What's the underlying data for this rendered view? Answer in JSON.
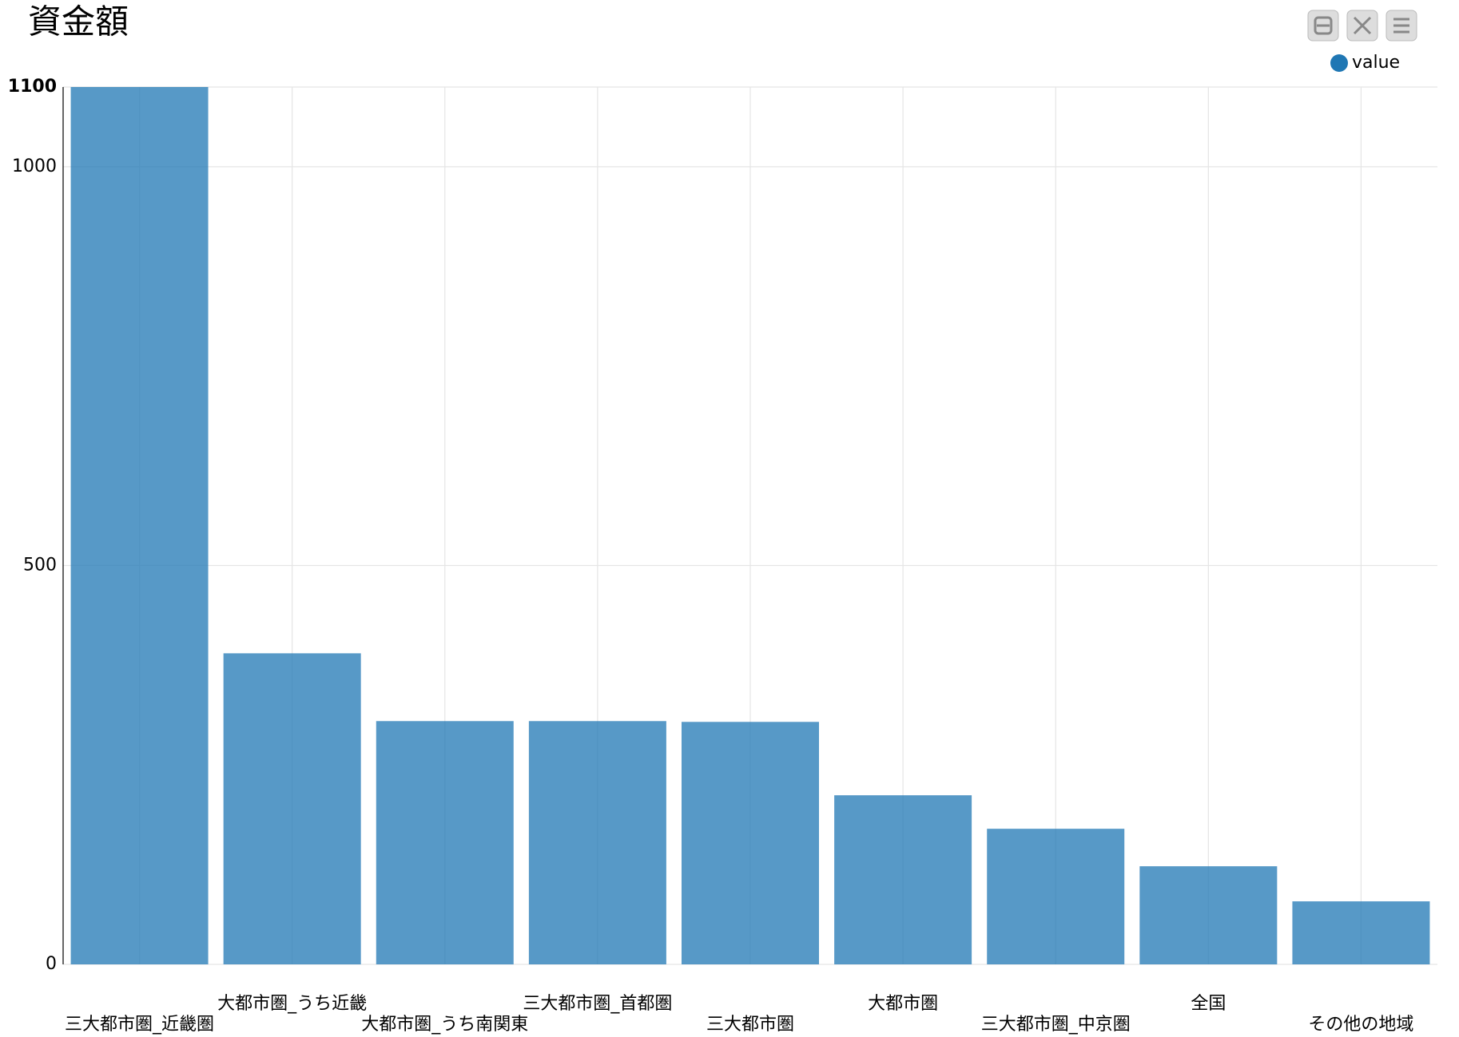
{
  "chart_data": {
    "type": "bar",
    "title": "資金額",
    "categories": [
      "三大都市圏_近畿圏",
      "大都市圏_うち近畿",
      "大都市圏_うち南関東",
      "三大都市圏_首都圏",
      "三大都市圏",
      "大都市圏",
      "三大都市圏_中京圏",
      "全国",
      "その他の地域"
    ],
    "series": [
      {
        "name": "value",
        "color": "#1f77b4",
        "values": [
          1100,
          390,
          305,
          305,
          304,
          212,
          170,
          123,
          79
        ]
      }
    ],
    "ylim": [
      0,
      1100
    ],
    "yticks": [
      0,
      500,
      1000,
      1100
    ],
    "grid": true
  }
}
